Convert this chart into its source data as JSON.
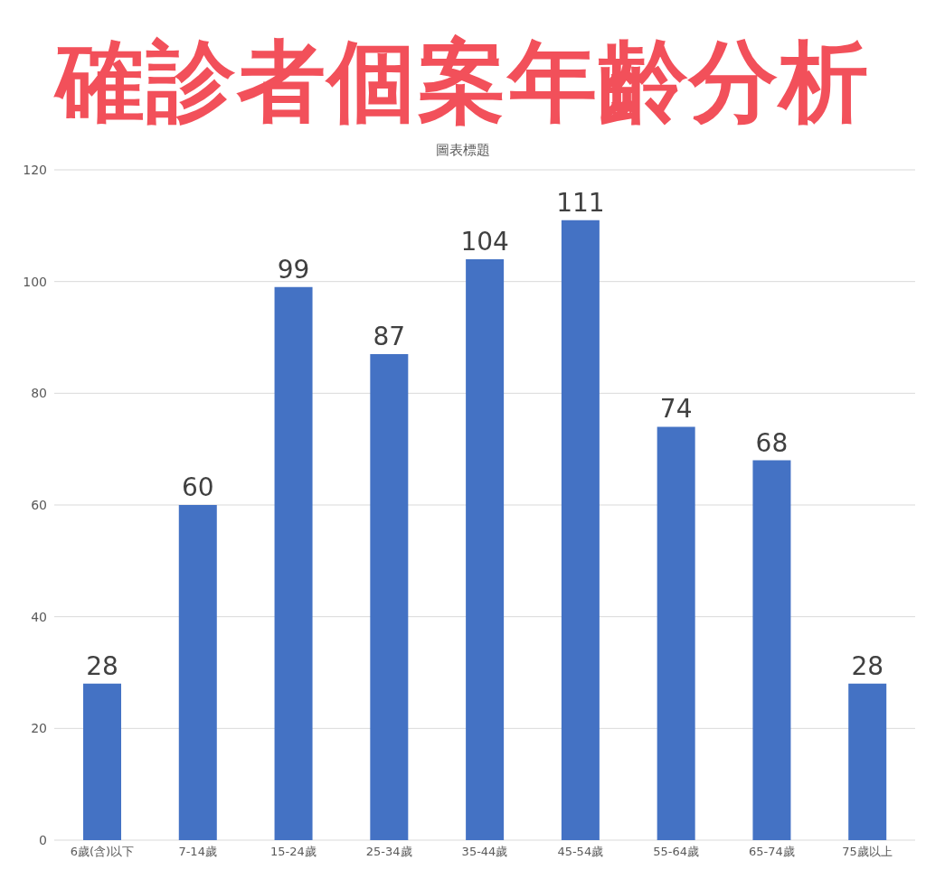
{
  "chart_data": {
    "type": "bar",
    "title": "確診者個案年齡分析",
    "subtitle": "圖表標題",
    "categories": [
      "6歲(含)以下",
      "7-14歲",
      "15-24歲",
      "25-34歲",
      "35-44歲",
      "45-54歲",
      "55-64歲",
      "65-74歲",
      "75歲以上"
    ],
    "values": [
      28,
      60,
      99,
      87,
      104,
      111,
      74,
      68,
      28
    ],
    "color": "#4472c4",
    "ylim": [
      0,
      120
    ],
    "yticks": [
      0,
      20,
      40,
      60,
      80,
      100,
      120
    ],
    "grid": "y",
    "data_labels": true
  }
}
